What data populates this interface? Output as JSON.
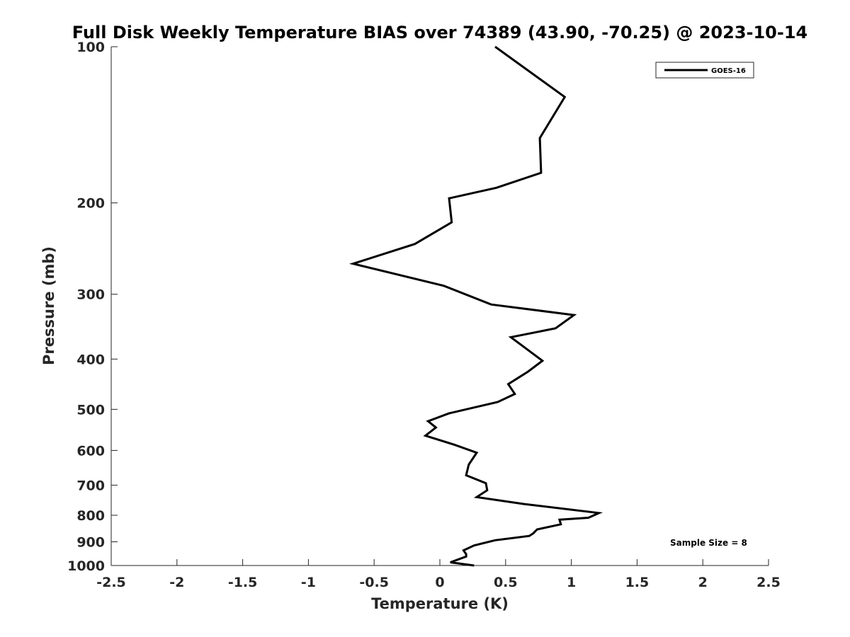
{
  "chart_data": {
    "type": "line",
    "title": "Full Disk Weekly Temperature BIAS over 74389 (43.90, -70.25) @ 2023-10-14",
    "xlabel": "Temperature (K)",
    "ylabel": "Pressure (mb)",
    "xlim": [
      -2.5,
      2.5
    ],
    "ylim": [
      100,
      1000
    ],
    "y_scale": "log",
    "y_reversed": true,
    "grid": false,
    "legend_position": "top-right",
    "xticks": [
      -2.5,
      -2,
      -1.5,
      -1,
      -0.5,
      0,
      0.5,
      1,
      1.5,
      2,
      2.5
    ],
    "xtick_labels": [
      "-2.5",
      "-2",
      "-1.5",
      "-1",
      "-0.5",
      "0",
      "0.5",
      "1",
      "1.5",
      "2",
      "2.5"
    ],
    "yticks": [
      100,
      200,
      300,
      400,
      500,
      600,
      700,
      800,
      900,
      1000
    ],
    "ytick_labels": [
      "100",
      "200",
      "300",
      "400",
      "500",
      "600",
      "700",
      "800",
      "900",
      "1000"
    ],
    "series": [
      {
        "name": "GOES-16",
        "color": "#000000",
        "x": [
          0.42,
          0.95,
          0.76,
          0.77,
          0.43,
          0.07,
          0.09,
          -0.19,
          -0.66,
          0.03,
          0.39,
          1.02,
          0.88,
          0.54,
          0.78,
          0.67,
          0.6,
          0.52,
          0.57,
          0.44,
          0.07,
          -0.09,
          -0.03,
          -0.11,
          0.11,
          0.28,
          0.22,
          0.2,
          0.35,
          0.36,
          0.28,
          0.64,
          1.21,
          1.13,
          0.91,
          0.92,
          0.74,
          0.71,
          0.68,
          0.42,
          0.26,
          0.18,
          0.2,
          0.2,
          0.08,
          0.26
        ],
        "y": [
          100,
          125,
          150,
          175,
          187,
          196,
          218,
          240,
          262,
          289,
          314,
          329,
          349,
          363,
          403,
          423,
          434,
          447,
          467,
          484,
          509,
          527,
          542,
          562,
          585,
          606,
          639,
          670,
          694,
          716,
          738,
          761,
          792,
          809,
          816,
          833,
          852,
          867,
          877,
          894,
          915,
          935,
          951,
          961,
          986,
          1000
        ]
      }
    ],
    "annotations": [
      "Sample Size = 8"
    ]
  }
}
